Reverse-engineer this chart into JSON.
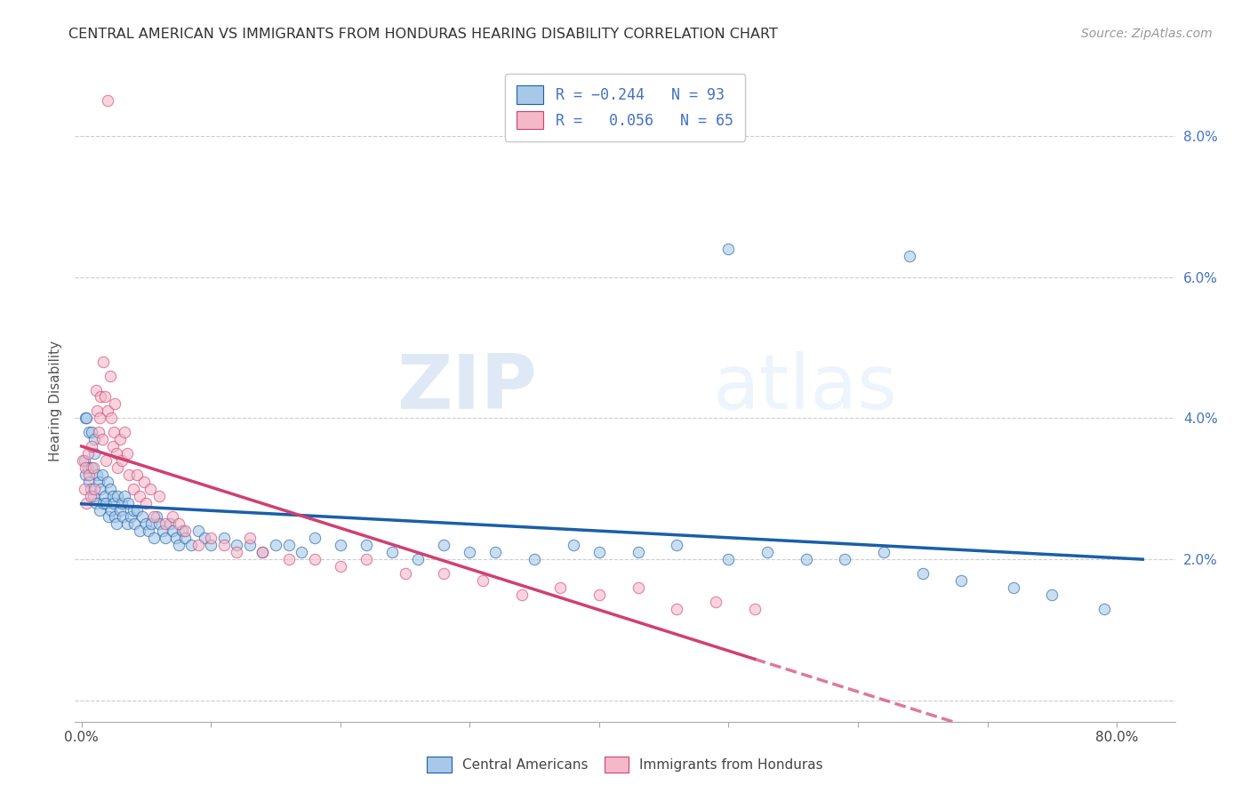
{
  "title": "CENTRAL AMERICAN VS IMMIGRANTS FROM HONDURAS HEARING DISABILITY CORRELATION CHART",
  "source": "Source: ZipAtlas.com",
  "ylabel": "Hearing Disability",
  "color_blue": "#a8c8e8",
  "color_pink": "#f4b8c8",
  "trendline_blue": "#1a5fa8",
  "trendline_pink": "#d04070",
  "watermark_zip": "ZIP",
  "watermark_atlas": "atlas",
  "background": "#ffffff",
  "xlim": [
    -0.005,
    0.845
  ],
  "ylim": [
    -0.003,
    0.088
  ],
  "blue_scatter_x": [
    0.002,
    0.003,
    0.005,
    0.006,
    0.007,
    0.008,
    0.009,
    0.01,
    0.011,
    0.012,
    0.013,
    0.014,
    0.015,
    0.016,
    0.017,
    0.018,
    0.019,
    0.02,
    0.021,
    0.022,
    0.023,
    0.024,
    0.025,
    0.026,
    0.027,
    0.028,
    0.03,
    0.031,
    0.032,
    0.033,
    0.035,
    0.036,
    0.038,
    0.04,
    0.041,
    0.043,
    0.045,
    0.047,
    0.05,
    0.052,
    0.054,
    0.056,
    0.058,
    0.06,
    0.063,
    0.065,
    0.068,
    0.07,
    0.073,
    0.075,
    0.078,
    0.08,
    0.085,
    0.09,
    0.095,
    0.1,
    0.11,
    0.12,
    0.13,
    0.14,
    0.15,
    0.16,
    0.17,
    0.18,
    0.2,
    0.22,
    0.24,
    0.26,
    0.28,
    0.3,
    0.32,
    0.35,
    0.38,
    0.4,
    0.43,
    0.46,
    0.5,
    0.53,
    0.56,
    0.59,
    0.62,
    0.65,
    0.68,
    0.72,
    0.75,
    0.79,
    0.5,
    0.64,
    0.003,
    0.004,
    0.006,
    0.008,
    0.01
  ],
  "blue_scatter_y": [
    0.034,
    0.032,
    0.033,
    0.031,
    0.03,
    0.033,
    0.029,
    0.035,
    0.028,
    0.032,
    0.031,
    0.027,
    0.03,
    0.032,
    0.028,
    0.029,
    0.028,
    0.031,
    0.026,
    0.03,
    0.027,
    0.029,
    0.028,
    0.026,
    0.025,
    0.029,
    0.027,
    0.028,
    0.026,
    0.029,
    0.025,
    0.028,
    0.026,
    0.027,
    0.025,
    0.027,
    0.024,
    0.026,
    0.025,
    0.024,
    0.025,
    0.023,
    0.026,
    0.025,
    0.024,
    0.023,
    0.025,
    0.024,
    0.023,
    0.022,
    0.024,
    0.023,
    0.022,
    0.024,
    0.023,
    0.022,
    0.023,
    0.022,
    0.022,
    0.021,
    0.022,
    0.022,
    0.021,
    0.023,
    0.022,
    0.022,
    0.021,
    0.02,
    0.022,
    0.021,
    0.021,
    0.02,
    0.022,
    0.021,
    0.021,
    0.022,
    0.02,
    0.021,
    0.02,
    0.02,
    0.021,
    0.018,
    0.017,
    0.016,
    0.015,
    0.013,
    0.064,
    0.063,
    0.04,
    0.04,
    0.038,
    0.038,
    0.037
  ],
  "pink_scatter_x": [
    0.001,
    0.002,
    0.003,
    0.004,
    0.005,
    0.006,
    0.007,
    0.008,
    0.009,
    0.01,
    0.011,
    0.012,
    0.013,
    0.014,
    0.015,
    0.016,
    0.017,
    0.018,
    0.019,
    0.02,
    0.022,
    0.023,
    0.024,
    0.025,
    0.026,
    0.027,
    0.028,
    0.03,
    0.031,
    0.033,
    0.035,
    0.037,
    0.04,
    0.043,
    0.045,
    0.048,
    0.05,
    0.053,
    0.056,
    0.06,
    0.065,
    0.07,
    0.075,
    0.08,
    0.09,
    0.1,
    0.11,
    0.12,
    0.13,
    0.14,
    0.16,
    0.18,
    0.2,
    0.22,
    0.25,
    0.28,
    0.31,
    0.34,
    0.37,
    0.4,
    0.43,
    0.46,
    0.49,
    0.52,
    0.02
  ],
  "pink_scatter_y": [
    0.034,
    0.03,
    0.033,
    0.028,
    0.035,
    0.032,
    0.029,
    0.036,
    0.033,
    0.03,
    0.044,
    0.041,
    0.038,
    0.04,
    0.043,
    0.037,
    0.048,
    0.043,
    0.034,
    0.041,
    0.046,
    0.04,
    0.036,
    0.038,
    0.042,
    0.035,
    0.033,
    0.037,
    0.034,
    0.038,
    0.035,
    0.032,
    0.03,
    0.032,
    0.029,
    0.031,
    0.028,
    0.03,
    0.026,
    0.029,
    0.025,
    0.026,
    0.025,
    0.024,
    0.022,
    0.023,
    0.022,
    0.021,
    0.023,
    0.021,
    0.02,
    0.02,
    0.019,
    0.02,
    0.018,
    0.018,
    0.017,
    0.015,
    0.016,
    0.015,
    0.016,
    0.013,
    0.014,
    0.013,
    0.085
  ]
}
